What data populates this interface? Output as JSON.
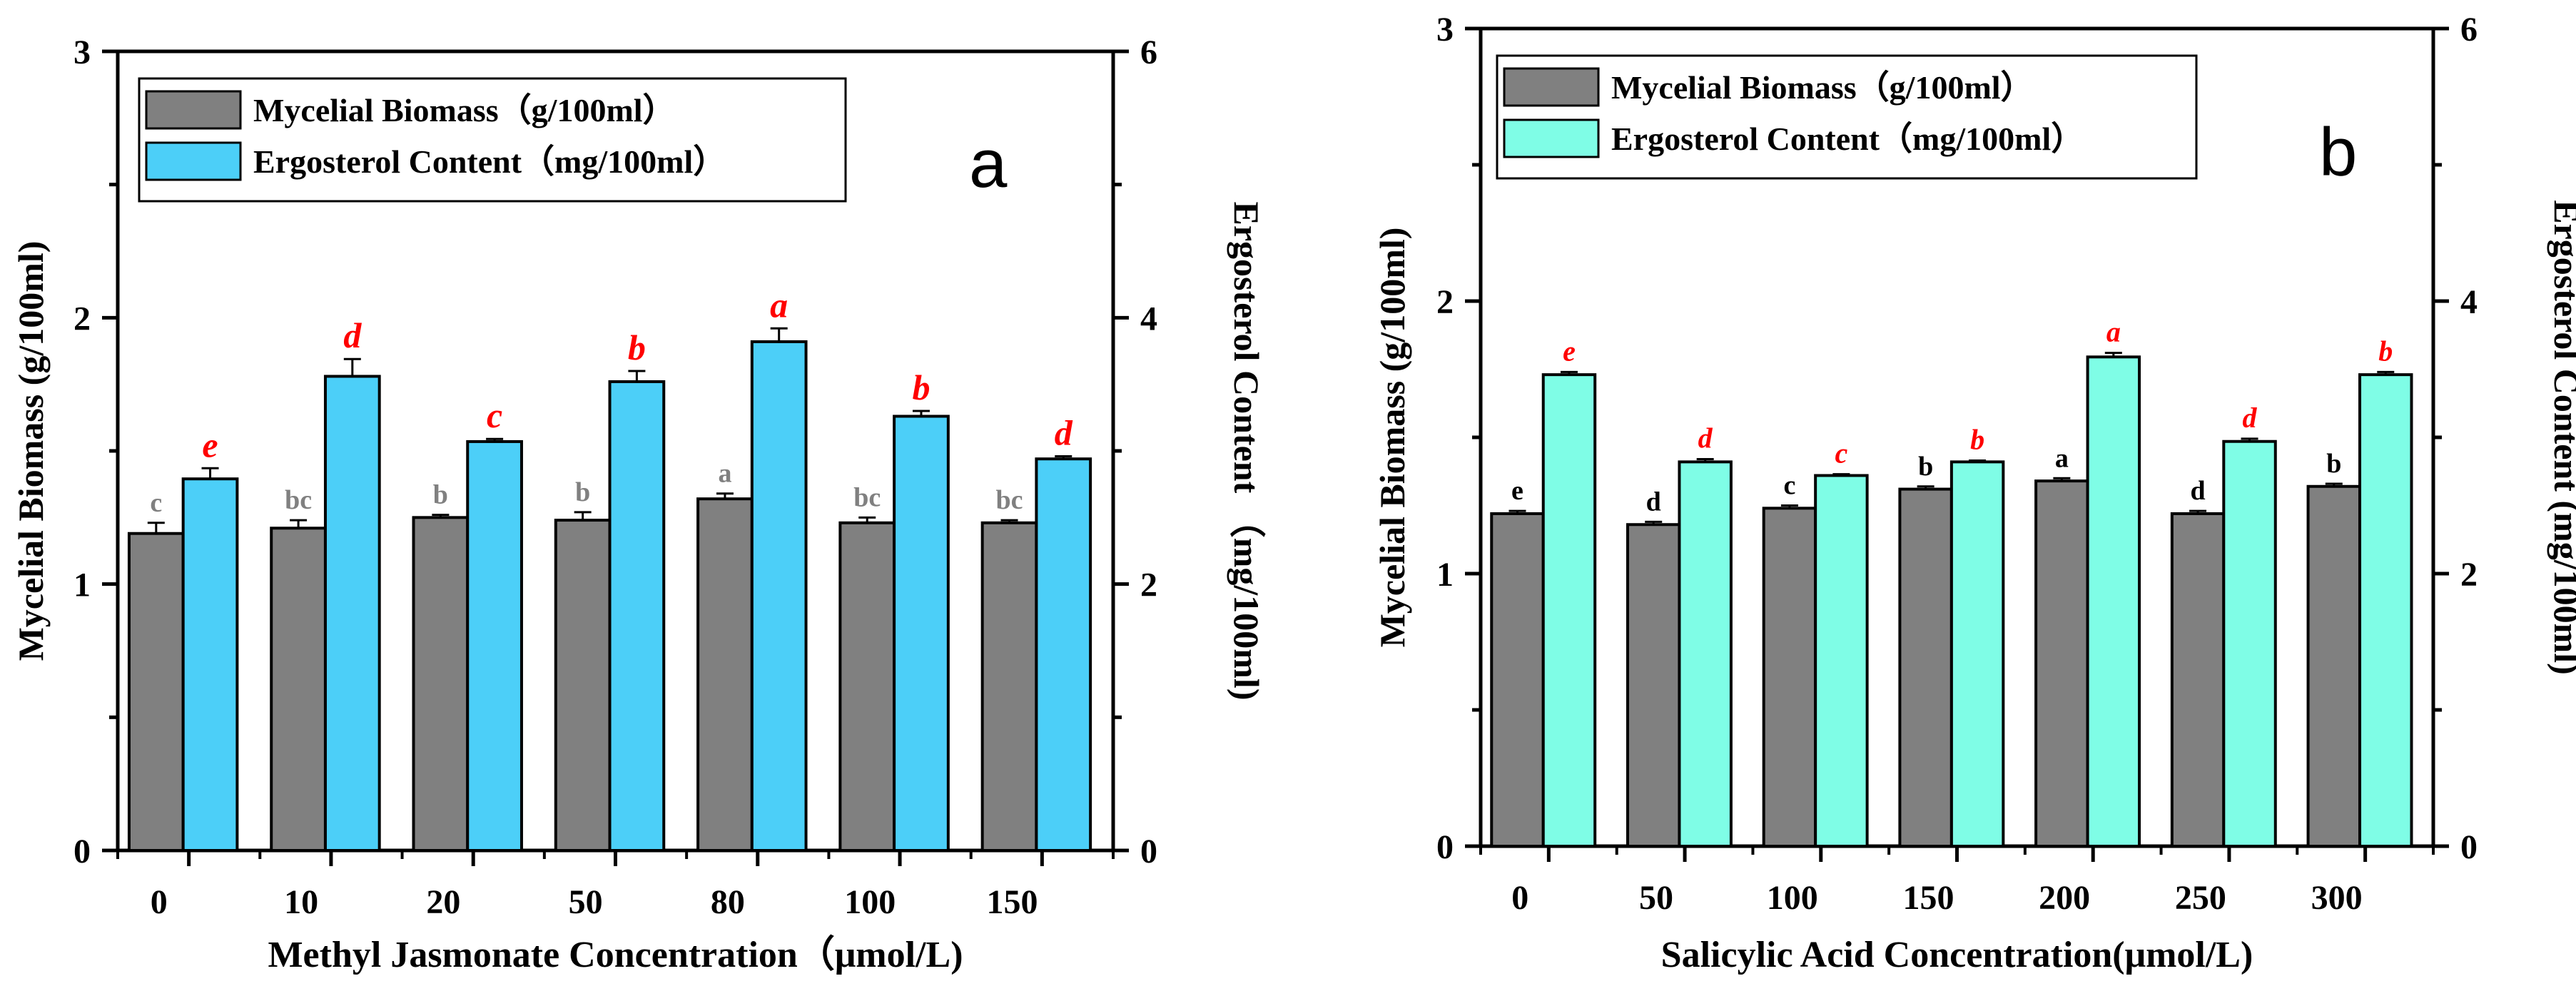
{
  "chart_data": [
    {
      "type": "bar",
      "panel_label": "a",
      "xlabel": "Methyl Jasmonate Concentration（μmol/L)",
      "ylabel_left": "Mycelial Biomass (g/100ml)",
      "ylabel_right": "Ergosterol  Content （mg/100ml)",
      "ylim_left": [
        0,
        3
      ],
      "ylim_right": [
        0,
        6
      ],
      "yticks_left": [
        "0",
        "1",
        "2",
        "3"
      ],
      "yticks_right": [
        "0",
        "2",
        "4",
        "6"
      ],
      "categories": [
        "0",
        "10",
        "20",
        "50",
        "80",
        "100",
        "150"
      ],
      "series": [
        {
          "name": "Mycelial Biomass（g/100ml）",
          "axis": "left",
          "color": "#808080",
          "values": [
            1.19,
            1.21,
            1.25,
            1.24,
            1.32,
            1.23,
            1.23
          ],
          "errors": [
            0.04,
            0.03,
            0.01,
            0.03,
            0.02,
            0.02,
            0.01
          ],
          "labels": [
            "c",
            "bc",
            "b",
            "b",
            "a",
            "bc",
            "bc"
          ],
          "label_color": "#808080"
        },
        {
          "name": "Ergosterol Content（mg/100ml）",
          "axis": "right",
          "color": "#4ccff8",
          "values": [
            2.79,
            3.56,
            3.07,
            3.52,
            3.82,
            3.26,
            2.94
          ],
          "errors": [
            0.08,
            0.13,
            0.02,
            0.08,
            0.1,
            0.04,
            0.02
          ],
          "labels": [
            "e",
            "d",
            "c",
            "b",
            "a",
            "b",
            "d"
          ],
          "label_color": "#ff0000"
        }
      ]
    },
    {
      "type": "bar",
      "panel_label": "b",
      "xlabel": "Salicylic Acid Concentration(μmol/L)",
      "ylabel_left": "Mycelial Biomass (g/100ml)",
      "ylabel_right": "Ergosterol Content  (mg/100ml)",
      "ylim_left": [
        0,
        3
      ],
      "ylim_right": [
        0,
        6
      ],
      "yticks_left": [
        "0",
        "1",
        "2",
        "3"
      ],
      "yticks_right": [
        "0",
        "2",
        "4",
        "6"
      ],
      "categories": [
        "0",
        "50",
        "100",
        "150",
        "200",
        "250",
        "300"
      ],
      "series": [
        {
          "name": "Mycelial Biomass（g/100ml）",
          "axis": "left",
          "color": "#808080",
          "values": [
            1.22,
            1.18,
            1.24,
            1.31,
            1.34,
            1.22,
            1.32
          ],
          "errors": [
            0.01,
            0.01,
            0.01,
            0.01,
            0.01,
            0.01,
            0.01
          ],
          "labels": [
            "e",
            "d",
            "c",
            "b",
            "a",
            "d",
            "b"
          ],
          "label_color": "#000000"
        },
        {
          "name": "Ergosterol Content（mg/100ml）",
          "axis": "right",
          "color": "#7ffde6",
          "values": [
            3.46,
            2.82,
            2.72,
            2.82,
            3.59,
            2.97,
            3.46
          ],
          "errors": [
            0.02,
            0.02,
            0.01,
            0.01,
            0.03,
            0.02,
            0.02
          ],
          "labels": [
            "e",
            "d",
            "c",
            "b",
            "a",
            "d",
            "b"
          ],
          "label_color": "#ff0000"
        }
      ]
    }
  ]
}
